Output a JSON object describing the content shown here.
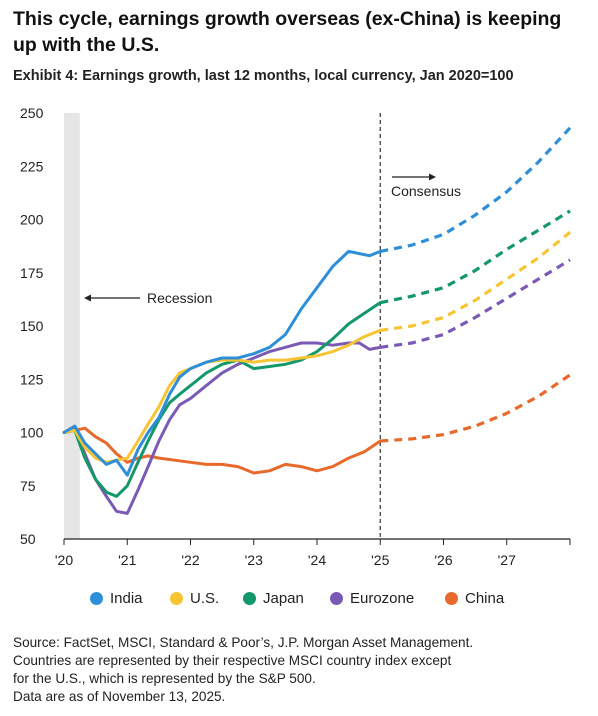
{
  "title": "This cycle, earnings growth overseas (ex-China) is keeping up with the U.S.",
  "subtitle": "Exhibit 4: Earnings growth, last 12 months, local currency, Jan 2020=100",
  "annotations": {
    "recession": "Recession",
    "consensus": "Consensus"
  },
  "source": [
    "Source: FactSet, MSCI, Standard & Poor’s, J.P. Morgan Asset Management.",
    "Countries are represented by their respective MSCI country index except",
    "for the U.S., which is represented by the S&P 500.",
    "Data are as of November 13, 2025."
  ],
  "chart_data": {
    "type": "line",
    "title": "Exhibit 4: Earnings growth, last 12 months, local currency, Jan 2020=100",
    "ylim": [
      50,
      250
    ],
    "yticks": [
      50,
      75,
      100,
      125,
      150,
      175,
      200,
      225,
      250
    ],
    "xlim": [
      2020,
      2028
    ],
    "xticks": [
      2020,
      2021,
      2022,
      2023,
      2024,
      2025,
      2026,
      2027
    ],
    "xticklabels": [
      "'20",
      "'21",
      "'22",
      "'23",
      "'24",
      "'25",
      "'26",
      "'27"
    ],
    "grid": false,
    "legend_position": "bottom",
    "recession_shading": [
      2020.0,
      2020.25
    ],
    "forecast_start": 2025,
    "series": [
      {
        "name": "India",
        "color": "#2e8fd8",
        "x": [
          2020.0,
          2020.17,
          2020.33,
          2020.5,
          2020.67,
          2020.83,
          2021.0,
          2021.17,
          2021.33,
          2021.5,
          2021.67,
          2021.83,
          2022.0,
          2022.25,
          2022.5,
          2022.75,
          2023.0,
          2023.25,
          2023.5,
          2023.75,
          2024.0,
          2024.25,
          2024.5,
          2024.67,
          2024.83,
          2025.0
        ],
        "y": [
          100,
          103,
          95,
          90,
          85,
          87,
          80,
          92,
          100,
          107,
          118,
          126,
          130,
          133,
          135,
          135,
          137,
          140,
          146,
          158,
          168,
          178,
          185,
          184,
          183,
          185
        ],
        "forecast_x": [
          2025.0,
          2025.5,
          2026.0,
          2026.5,
          2027.0,
          2027.5,
          2028.0
        ],
        "forecast_y": [
          185,
          188,
          193,
          202,
          213,
          227,
          243
        ]
      },
      {
        "name": "U.S.",
        "color": "#f7c434",
        "x": [
          2020.0,
          2020.17,
          2020.33,
          2020.5,
          2020.67,
          2020.83,
          2021.0,
          2021.17,
          2021.33,
          2021.5,
          2021.67,
          2021.83,
          2022.0,
          2022.25,
          2022.5,
          2022.75,
          2023.0,
          2023.25,
          2023.5,
          2023.75,
          2024.0,
          2024.25,
          2024.5,
          2024.75,
          2025.0
        ],
        "y": [
          100,
          101,
          93,
          88,
          86,
          87,
          88,
          96,
          104,
          112,
          122,
          128,
          130,
          133,
          134,
          134,
          133,
          134,
          134,
          135,
          136,
          138,
          141,
          145,
          148
        ],
        "forecast_x": [
          2025.0,
          2025.5,
          2026.0,
          2026.5,
          2027.0,
          2027.5,
          2028.0
        ],
        "forecast_y": [
          148,
          150,
          154,
          162,
          172,
          182,
          194
        ]
      },
      {
        "name": "Japan",
        "color": "#14986a",
        "x": [
          2020.0,
          2020.17,
          2020.33,
          2020.5,
          2020.67,
          2020.83,
          2021.0,
          2021.17,
          2021.33,
          2021.5,
          2021.67,
          2021.83,
          2022.0,
          2022.25,
          2022.5,
          2022.75,
          2023.0,
          2023.25,
          2023.5,
          2023.75,
          2024.0,
          2024.25,
          2024.5,
          2024.75,
          2025.0
        ],
        "y": [
          100,
          101,
          88,
          78,
          72,
          70,
          75,
          86,
          96,
          106,
          114,
          118,
          122,
          128,
          132,
          134,
          130,
          131,
          132,
          134,
          138,
          144,
          151,
          156,
          161
        ],
        "forecast_x": [
          2025.0,
          2025.5,
          2026.0,
          2026.5,
          2027.0,
          2027.5,
          2028.0
        ],
        "forecast_y": [
          161,
          164,
          168,
          176,
          186,
          195,
          204
        ]
      },
      {
        "name": "Eurozone",
        "color": "#7b5ab5",
        "x": [
          2020.0,
          2020.17,
          2020.33,
          2020.5,
          2020.67,
          2020.83,
          2021.0,
          2021.17,
          2021.33,
          2021.5,
          2021.67,
          2021.83,
          2022.0,
          2022.25,
          2022.5,
          2022.75,
          2023.0,
          2023.25,
          2023.5,
          2023.75,
          2024.0,
          2024.25,
          2024.5,
          2024.67,
          2024.83,
          2025.0
        ],
        "y": [
          100,
          102,
          90,
          78,
          70,
          63,
          62,
          73,
          84,
          96,
          106,
          113,
          116,
          122,
          128,
          132,
          135,
          138,
          140,
          142,
          142,
          141,
          142,
          142,
          139,
          140
        ],
        "forecast_x": [
          2025.0,
          2025.5,
          2026.0,
          2026.5,
          2027.0,
          2027.5,
          2028.0
        ],
        "forecast_y": [
          140,
          142,
          146,
          154,
          163,
          172,
          181
        ]
      },
      {
        "name": "China",
        "color": "#e8692c",
        "x": [
          2020.0,
          2020.17,
          2020.33,
          2020.5,
          2020.67,
          2020.83,
          2021.0,
          2021.17,
          2021.33,
          2021.5,
          2021.75,
          2022.0,
          2022.25,
          2022.5,
          2022.75,
          2023.0,
          2023.25,
          2023.5,
          2023.75,
          2024.0,
          2024.25,
          2024.5,
          2024.75,
          2025.0
        ],
        "y": [
          100,
          101,
          102,
          98,
          95,
          90,
          86,
          88,
          89,
          88,
          87,
          86,
          85,
          85,
          84,
          81,
          82,
          85,
          84,
          82,
          84,
          88,
          91,
          96
        ],
        "forecast_x": [
          2025.0,
          2025.5,
          2026.0,
          2026.5,
          2027.0,
          2027.5,
          2028.0
        ],
        "forecast_y": [
          96,
          97,
          99,
          103,
          109,
          117,
          127
        ]
      }
    ]
  }
}
